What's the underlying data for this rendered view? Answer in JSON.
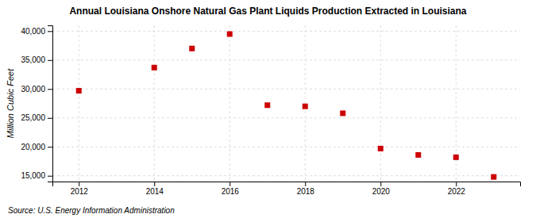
{
  "chart_data": {
    "type": "scatter",
    "title": "Annual Louisiana Onshore Natural Gas Plant Liquids Production Extracted in Louisiana",
    "ylabel": "Million Cubic Feet",
    "source": "Source: U.S. Energy Information Administration",
    "x": [
      2012,
      2014,
      2015,
      2016,
      2017,
      2018,
      2019,
      2020,
      2021,
      2022,
      2023
    ],
    "values": [
      29700,
      33700,
      37000,
      39500,
      27200,
      27000,
      25800,
      19700,
      18600,
      18200,
      14800
    ],
    "color": "#cc0000",
    "marker": "square",
    "xlim": [
      2011.3,
      2023.7
    ],
    "ylim": [
      14000,
      41000
    ],
    "xticks": [
      2012,
      2014,
      2016,
      2018,
      2020,
      2022
    ],
    "yticks": [
      {
        "value": 15000,
        "label": "15,000"
      },
      {
        "value": 20000,
        "label": "20,000"
      },
      {
        "value": 25000,
        "label": "25,000"
      },
      {
        "value": 30000,
        "label": "30,000"
      },
      {
        "value": 35000,
        "label": "35,000"
      },
      {
        "value": 40000,
        "label": "40,000"
      }
    ],
    "grid": true
  }
}
